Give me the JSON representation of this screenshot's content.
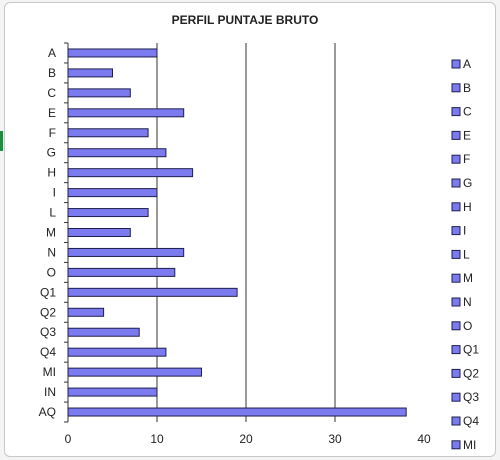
{
  "chart_data": {
    "type": "bar",
    "orientation": "horizontal",
    "title": "PERFIL PUNTAJE BRUTO",
    "xlabel": "",
    "ylabel": "",
    "categories": [
      "A",
      "B",
      "C",
      "E",
      "F",
      "G",
      "H",
      "I",
      "L",
      "M",
      "N",
      "O",
      "Q1",
      "Q2",
      "Q3",
      "Q4",
      "MI",
      "IN",
      "AQ"
    ],
    "values": [
      10,
      5,
      7,
      13,
      9,
      11,
      14,
      10,
      9,
      7,
      13,
      12,
      19,
      4,
      8,
      11,
      15,
      10,
      38
    ],
    "xlim": [
      0,
      40
    ],
    "xticks": [
      "0",
      "10",
      "20",
      "30",
      "40"
    ],
    "grid": "vertical",
    "legend_position": "right",
    "legend_entries": [
      "A",
      "B",
      "C",
      "E",
      "F",
      "G",
      "H",
      "I",
      "L",
      "M",
      "N",
      "O",
      "Q1",
      "Q2",
      "Q3",
      "Q4",
      "MI"
    ],
    "colors": {
      "bar_fill": "#7b7bef",
      "bar_stroke": "#1f1f4f",
      "grid": "#333333"
    }
  }
}
